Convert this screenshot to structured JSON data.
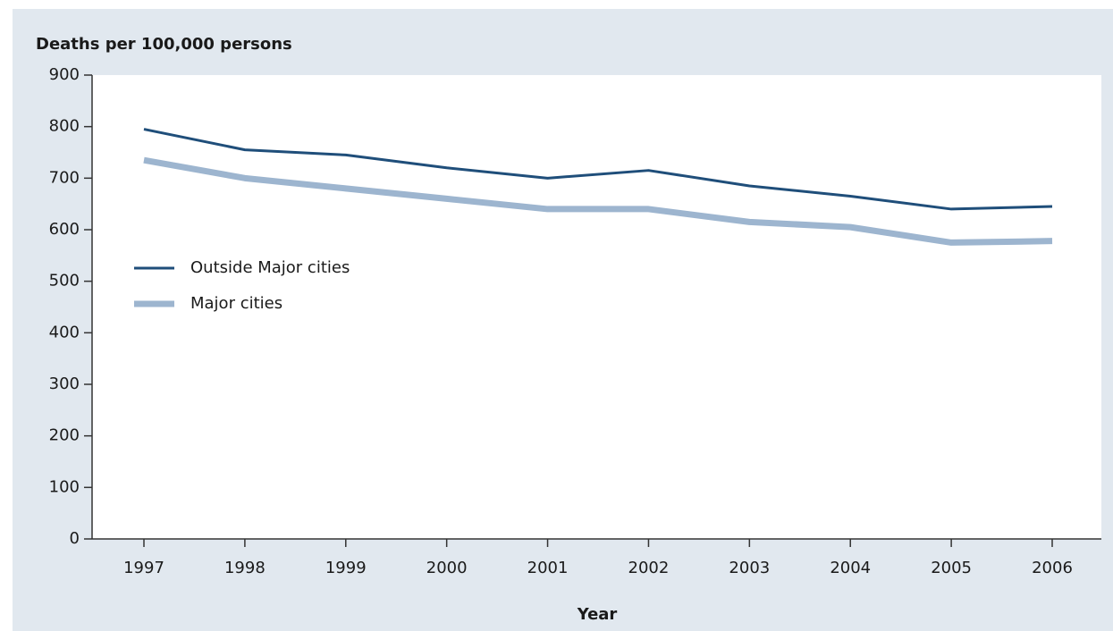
{
  "chart_data": {
    "type": "line",
    "y_label": "Deaths per 100,000 persons",
    "x_label": "Year",
    "categories": [
      "1997",
      "1998",
      "1999",
      "2000",
      "2001",
      "2002",
      "2003",
      "2004",
      "2005",
      "2006"
    ],
    "series": [
      {
        "name": "Outside Major cities",
        "color": "#1f4e7a",
        "values": [
          795,
          755,
          745,
          720,
          700,
          715,
          685,
          665,
          640,
          645
        ]
      },
      {
        "name": "Major cities",
        "color": "#9db5cf",
        "values": [
          735,
          700,
          680,
          660,
          640,
          640,
          615,
          605,
          575,
          578
        ]
      }
    ],
    "ylim": [
      0,
      900
    ],
    "yticks": [
      0,
      100,
      200,
      300,
      400,
      500,
      600,
      700,
      800,
      900
    ],
    "grid": false,
    "legend": "left"
  }
}
